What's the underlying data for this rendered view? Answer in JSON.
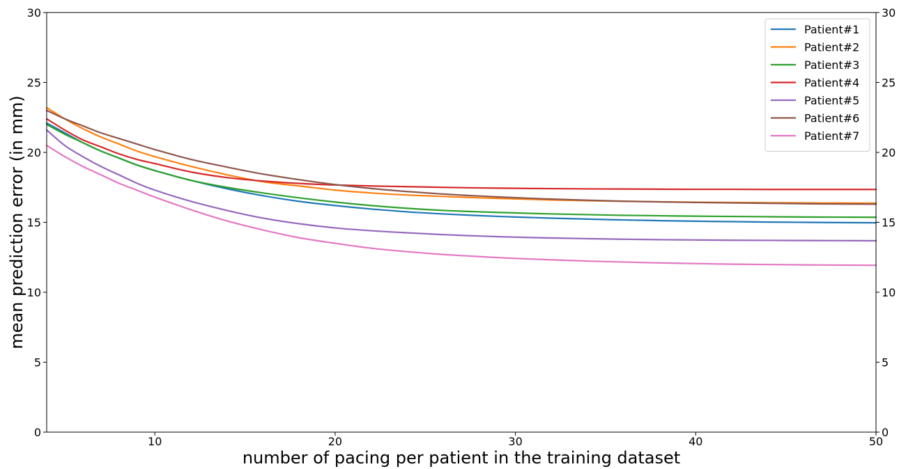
{
  "chart_data": {
    "type": "line",
    "xlabel": "number of pacing per patient in the training dataset",
    "ylabel": "mean prediction error (in mm)",
    "xlim": [
      4,
      50
    ],
    "ylim": [
      0,
      30
    ],
    "x_ticks": [
      10,
      20,
      30,
      40,
      50
    ],
    "y_ticks": [
      0,
      5,
      10,
      15,
      20,
      25,
      30
    ],
    "y_ticks_right": true,
    "grid": false,
    "legend_position": "top-right",
    "x": [
      4,
      5,
      6,
      7,
      8,
      9,
      10,
      12,
      14,
      16,
      18,
      20,
      22,
      24,
      26,
      28,
      30,
      32,
      34,
      36,
      38,
      40,
      42,
      44,
      46,
      48,
      50
    ],
    "series": [
      {
        "name": "Patient#1",
        "color": "#1f77b4",
        "values": [
          22.1,
          21.4,
          20.7,
          20.1,
          19.6,
          19.1,
          18.7,
          18.0,
          17.4,
          16.9,
          16.5,
          16.2,
          15.95,
          15.75,
          15.6,
          15.48,
          15.38,
          15.3,
          15.23,
          15.17,
          15.12,
          15.08,
          15.05,
          15.02,
          15.0,
          14.98,
          14.97
        ]
      },
      {
        "name": "Patient#2",
        "color": "#ff7f0e",
        "values": [
          23.2,
          22.4,
          21.7,
          21.1,
          20.6,
          20.1,
          19.7,
          19.0,
          18.4,
          17.9,
          17.6,
          17.3,
          17.1,
          16.95,
          16.85,
          16.75,
          16.68,
          16.6,
          16.55,
          16.5,
          16.47,
          16.44,
          16.42,
          16.4,
          16.39,
          16.38,
          16.37
        ]
      },
      {
        "name": "Patient#3",
        "color": "#2ca02c",
        "values": [
          22.0,
          21.3,
          20.7,
          20.1,
          19.6,
          19.1,
          18.7,
          18.0,
          17.5,
          17.1,
          16.75,
          16.45,
          16.2,
          16.0,
          15.85,
          15.75,
          15.67,
          15.6,
          15.55,
          15.5,
          15.47,
          15.44,
          15.42,
          15.4,
          15.38,
          15.37,
          15.36
        ]
      },
      {
        "name": "Patient#4",
        "color": "#d62728",
        "values": [
          22.4,
          21.6,
          20.9,
          20.4,
          19.9,
          19.5,
          19.2,
          18.6,
          18.2,
          17.95,
          17.78,
          17.67,
          17.6,
          17.55,
          17.5,
          17.46,
          17.43,
          17.41,
          17.39,
          17.38,
          17.37,
          17.36,
          17.36,
          17.35,
          17.35,
          17.35,
          17.35
        ]
      },
      {
        "name": "Patient#5",
        "color": "#9467bd",
        "values": [
          21.6,
          20.5,
          19.7,
          19.0,
          18.4,
          17.8,
          17.3,
          16.5,
          15.85,
          15.3,
          14.9,
          14.6,
          14.4,
          14.25,
          14.12,
          14.02,
          13.94,
          13.88,
          13.83,
          13.79,
          13.76,
          13.74,
          13.72,
          13.71,
          13.7,
          13.69,
          13.68
        ]
      },
      {
        "name": "Patient#6",
        "color": "#8c564b",
        "values": [
          23.0,
          22.4,
          21.9,
          21.4,
          21.0,
          20.6,
          20.2,
          19.5,
          18.95,
          18.45,
          18.05,
          17.7,
          17.42,
          17.2,
          17.02,
          16.88,
          16.76,
          16.66,
          16.58,
          16.51,
          16.46,
          16.42,
          16.39,
          16.36,
          16.33,
          16.31,
          16.3
        ]
      },
      {
        "name": "Patient#7",
        "color": "#e377c2",
        "values": [
          20.5,
          19.7,
          19.0,
          18.4,
          17.8,
          17.3,
          16.8,
          15.9,
          15.1,
          14.45,
          13.9,
          13.5,
          13.15,
          12.9,
          12.7,
          12.55,
          12.42,
          12.32,
          12.23,
          12.16,
          12.1,
          12.05,
          12.01,
          11.98,
          11.96,
          11.94,
          11.93
        ]
      }
    ]
  }
}
